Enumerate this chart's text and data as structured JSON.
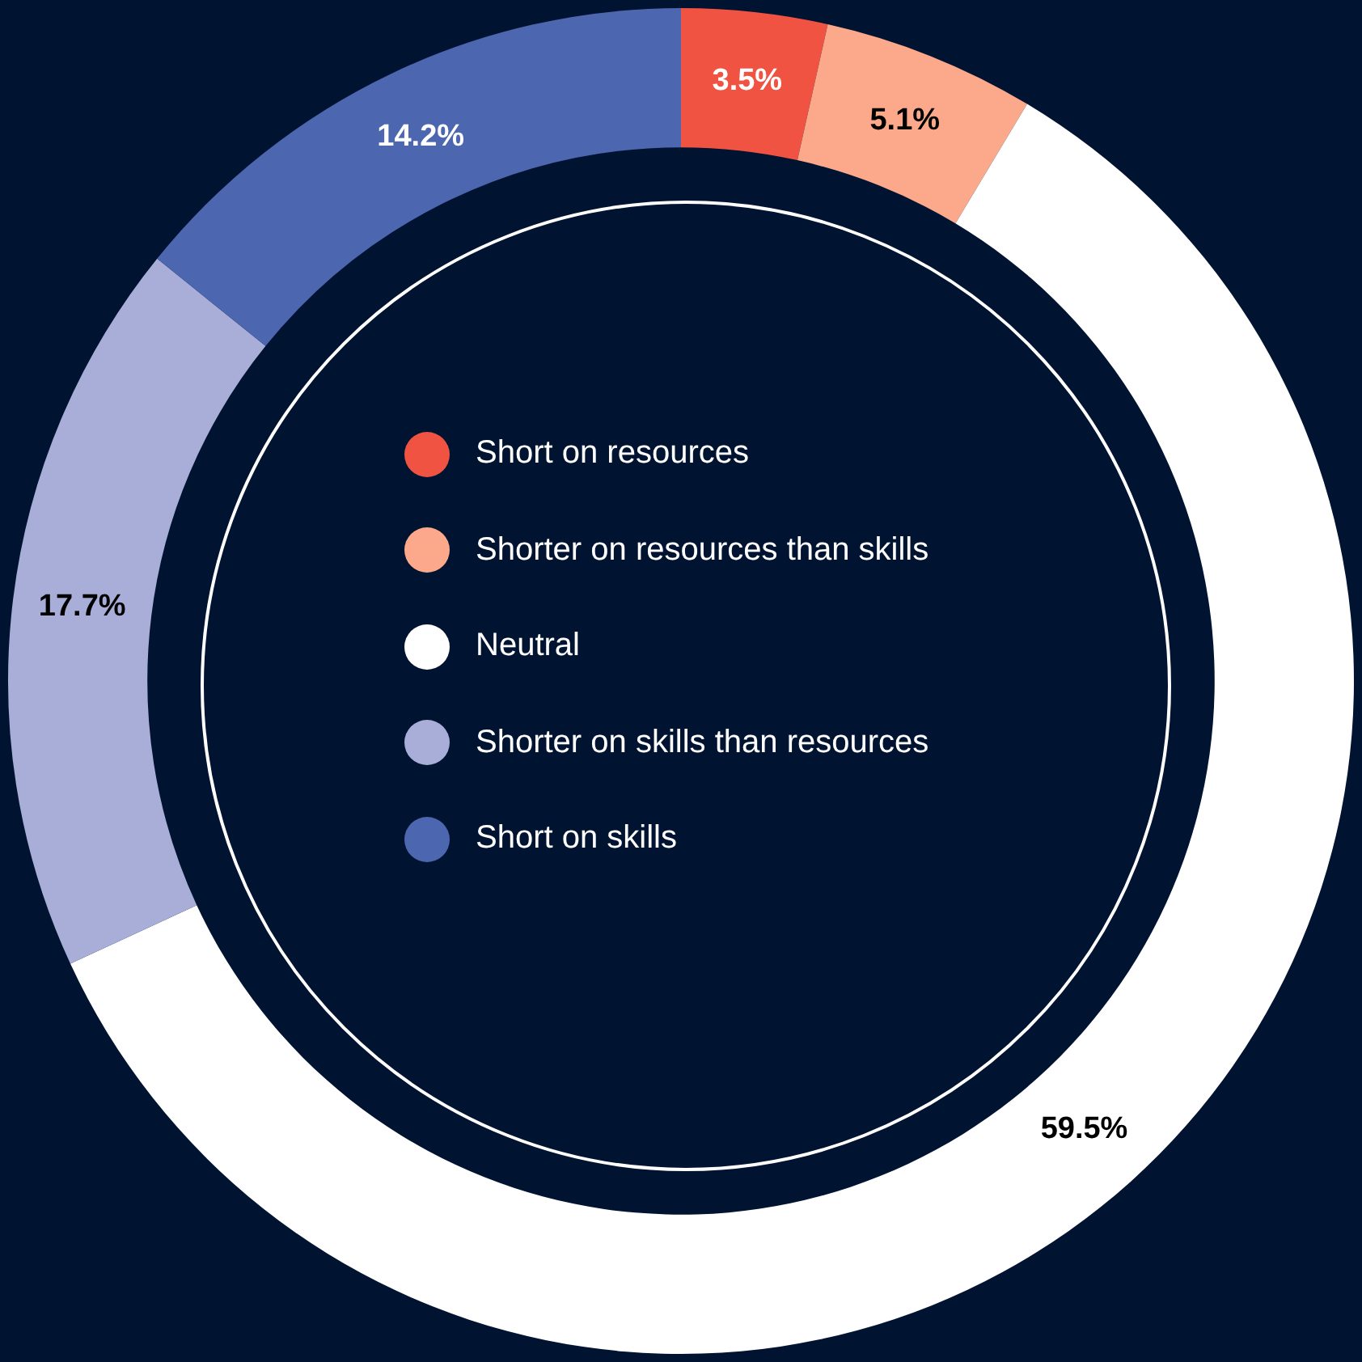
{
  "chart_data": {
    "type": "donut",
    "categories": [
      "Short on resources",
      "Shorter on resources than skills",
      "Neutral",
      "Shorter on skills than resources",
      "Short on skills"
    ],
    "values": [
      3.5,
      5.1,
      59.5,
      17.7,
      14.2
    ],
    "colors": [
      "#f05341",
      "#fca88a",
      "#ffffff",
      "#a9aed8",
      "#4d66b0"
    ],
    "value_labels": [
      "3.5%",
      "5.1%",
      "59.5%",
      "17.7%",
      "14.2%"
    ],
    "legend": "center"
  }
}
